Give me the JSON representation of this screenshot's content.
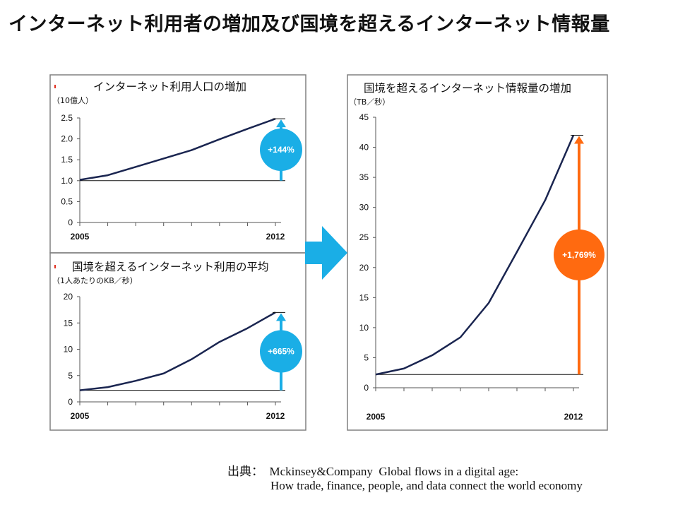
{
  "title": "インターネット利用者の増加及び国境を超えるインターネット情報量",
  "source": {
    "line1": "出典：  Mckinsey&Company  Global flows in a digital age:",
    "line2": "How trade, finance, people, and data connect the world economy"
  },
  "colors": {
    "line": "#1a2550",
    "blue_accent": "#1aaee6",
    "orange_accent": "#ff6a10",
    "panel_border": "#808080",
    "arrow": "#1aaee6"
  },
  "chart_data": [
    {
      "id": "users",
      "type": "line",
      "title": "インターネット利用人口の増加",
      "unit": "（10億人）",
      "x": [
        2005,
        2006,
        2007,
        2008,
        2009,
        2010,
        2011,
        2012
      ],
      "xticks": [
        "2005",
        "2012"
      ],
      "values": [
        1.02,
        1.13,
        1.33,
        1.53,
        1.73,
        1.99,
        2.24,
        2.48
      ],
      "ylim": [
        0,
        2.5
      ],
      "yticks": [
        "0",
        "0.5",
        "1.0",
        "1.5",
        "2.0",
        "2.5"
      ],
      "baseline": 1.0,
      "growth_label": "+144%",
      "accent": "blue"
    },
    {
      "id": "avg",
      "type": "line",
      "title": "国境を超えるインターネット利用の平均",
      "unit": "（1人あたりのKB／秒）",
      "x": [
        2005,
        2006,
        2007,
        2008,
        2009,
        2010,
        2011,
        2012
      ],
      "xticks": [
        "2005",
        "2012"
      ],
      "values": [
        2.2,
        2.8,
        4.0,
        5.4,
        8.1,
        11.4,
        14.0,
        17.0
      ],
      "ylim": [
        0,
        20
      ],
      "yticks": [
        "0",
        "5",
        "10",
        "15",
        "20"
      ],
      "baseline": 2.2,
      "growth_label": "+665%",
      "accent": "blue"
    },
    {
      "id": "traffic",
      "type": "line",
      "title": "国境を超えるインターネット情報量の増加",
      "unit": "（TB／秒）",
      "x": [
        2005,
        2006,
        2007,
        2008,
        2009,
        2010,
        2011,
        2012
      ],
      "xticks": [
        "2005",
        "2012"
      ],
      "values": [
        2.2,
        3.2,
        5.4,
        8.4,
        14.1,
        22.6,
        31.2,
        42.0
      ],
      "ylim": [
        0,
        45
      ],
      "yticks": [
        "0",
        "5",
        "10",
        "15",
        "20",
        "25",
        "30",
        "35",
        "40",
        "45"
      ],
      "baseline": 2.2,
      "growth_label": "+1,769%",
      "accent": "orange"
    }
  ]
}
